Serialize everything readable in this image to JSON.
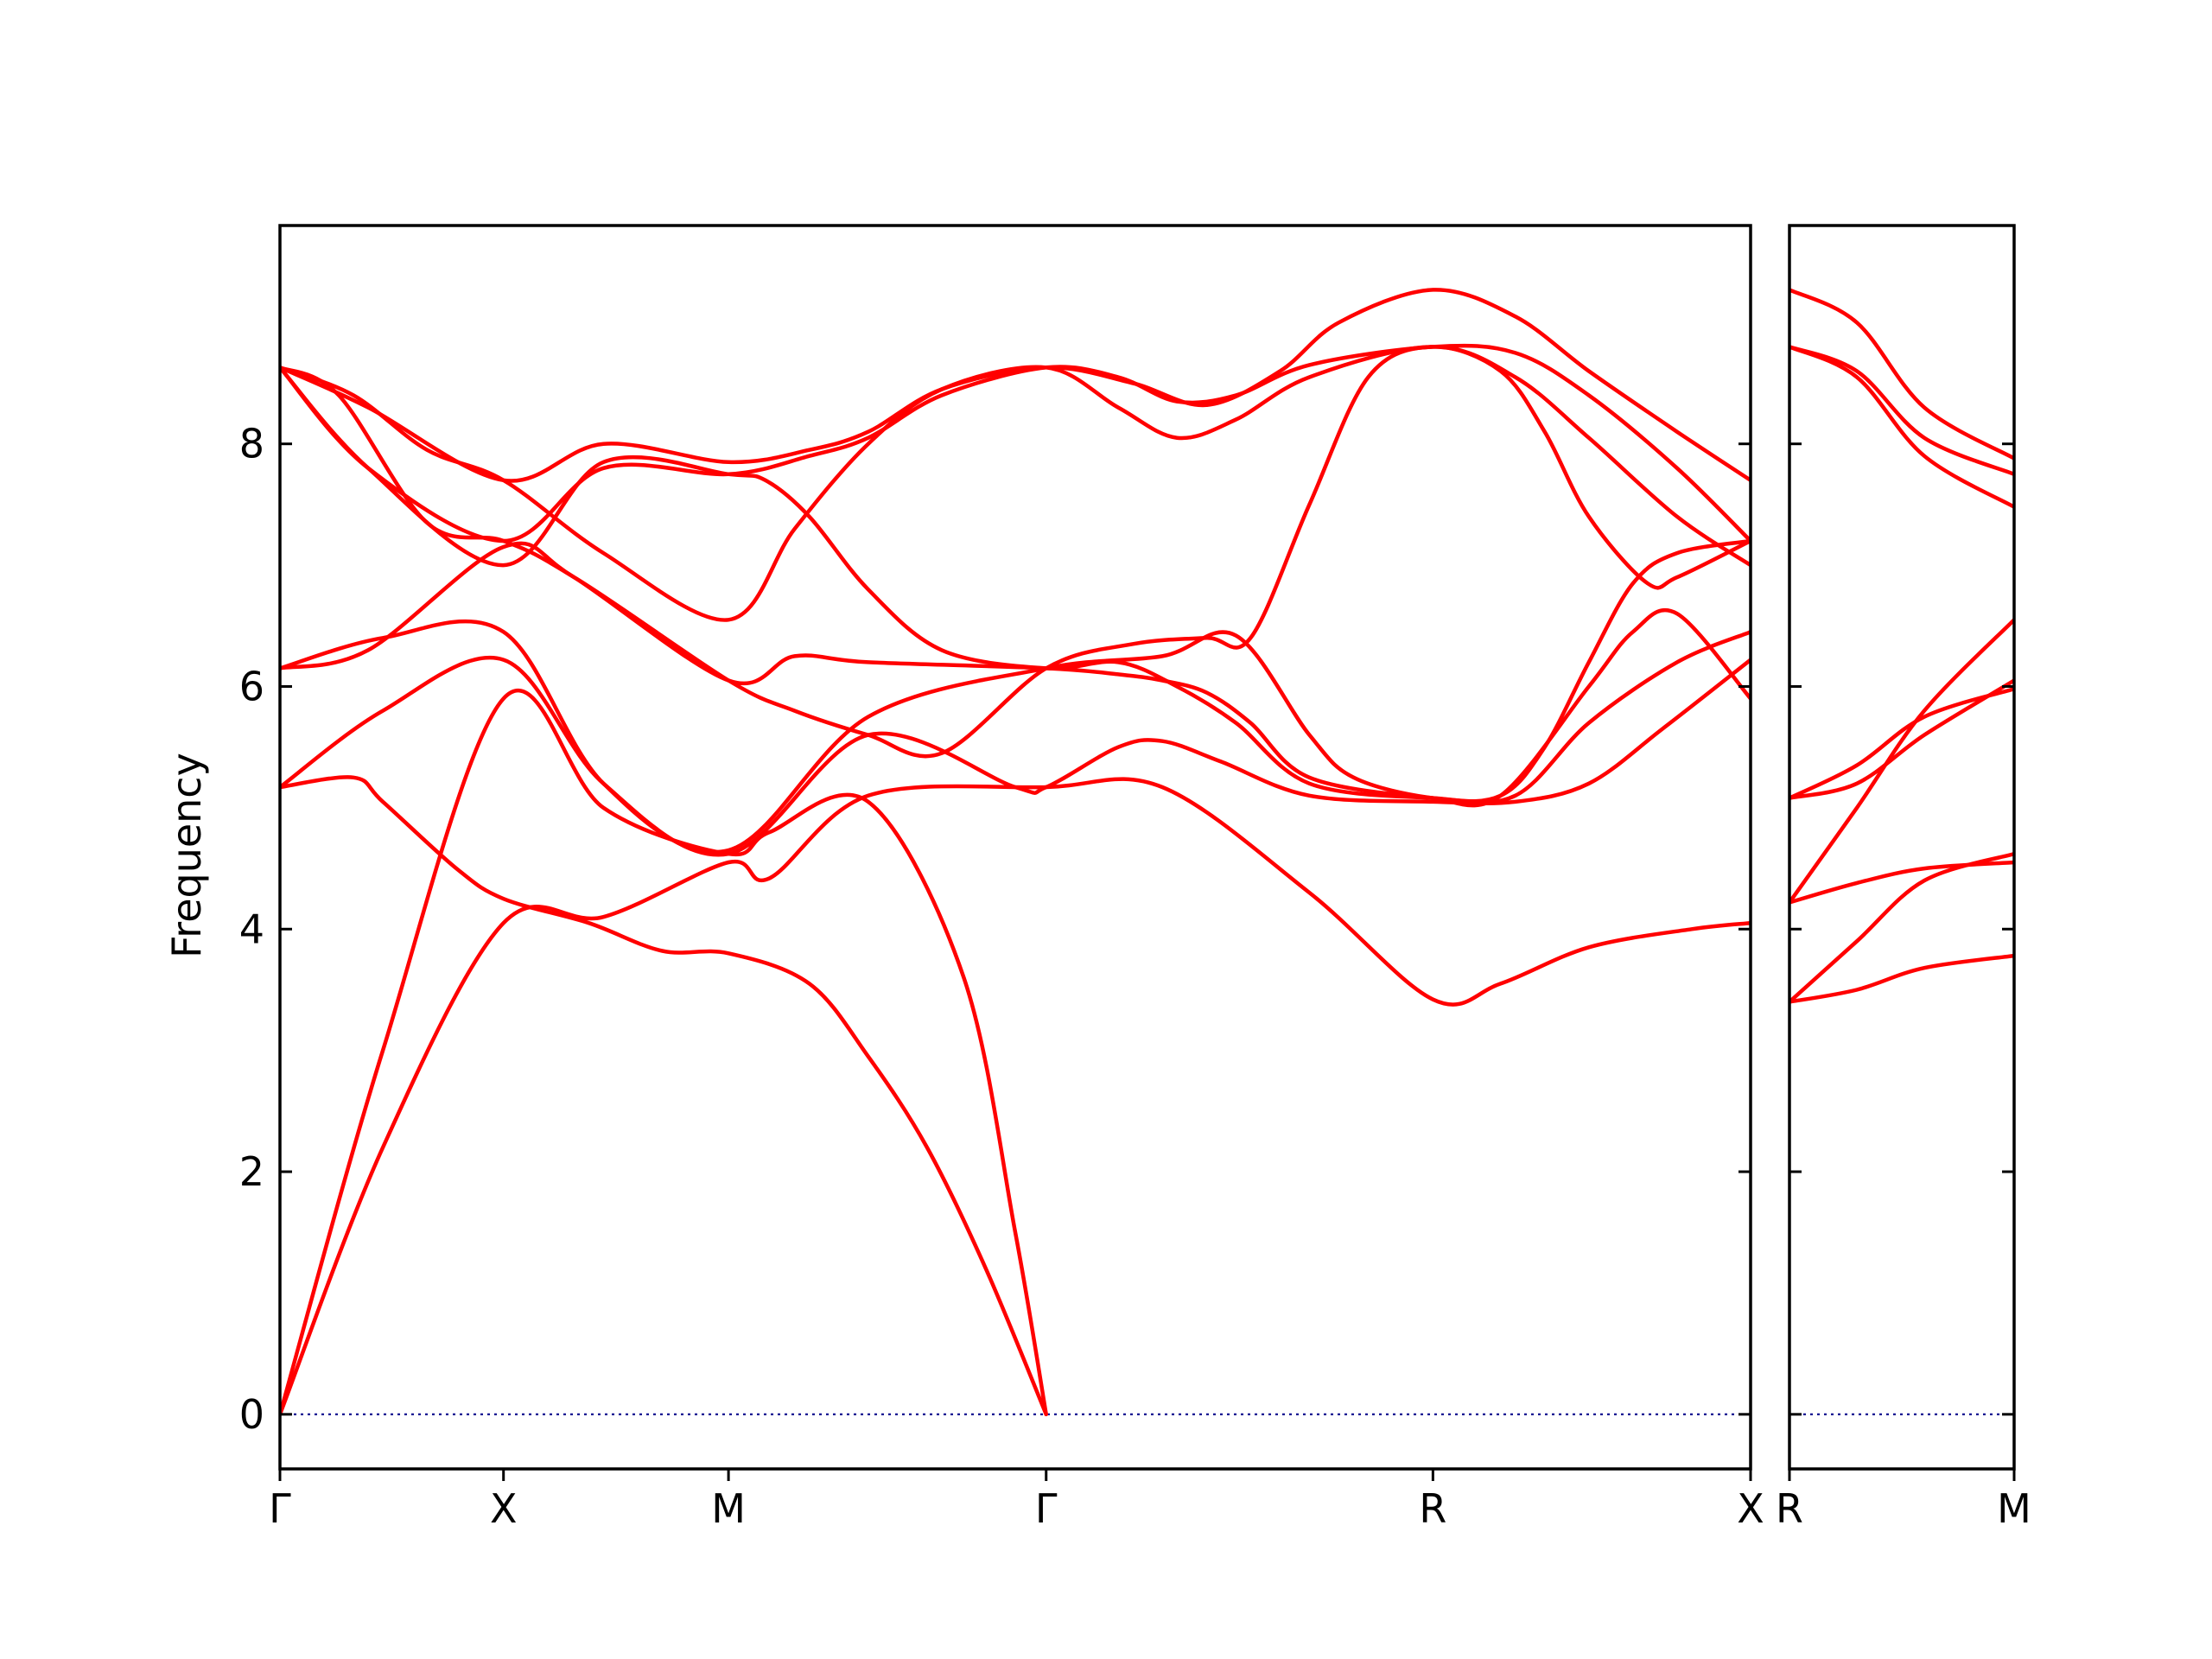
{
  "chart_data": {
    "type": "line",
    "title": "",
    "ylabel": "Frequency",
    "ylim": [
      -0.45,
      9.8
    ],
    "yticks": [
      0,
      2,
      4,
      6,
      8
    ],
    "grid": false,
    "legend": "none",
    "band_color": "#ff0000",
    "zero_line_color": "#00008b",
    "panels": [
      {
        "name": "main",
        "xlim": [
          0,
          1
        ],
        "x_tick_positions": [
          0,
          0.152,
          0.305,
          0.521,
          0.784,
          1.0
        ],
        "x_tick_labels": [
          "Γ",
          "X",
          "M",
          "Γ",
          "R",
          "X"
        ],
        "series": [
          {
            "x": [
              0,
              0.07,
              0.152,
              0.22,
              0.305,
              0.333,
              0.4,
              0.521,
              0.6,
              0.7,
              0.784,
              0.83,
              0.89,
              0.96,
              1.0
            ],
            "y": [
              0,
              2.2,
              4.05,
              4.1,
              4.55,
              4.42,
              5.1,
              5.17,
              5.17,
              4.3,
              3.42,
              3.55,
              3.85,
              4.0,
              4.05
            ]
          },
          {
            "x": [
              0,
              0.07,
              0.152,
              0.22,
              0.305,
              0.333,
              0.4,
              0.465,
              0.5,
              0.521
            ],
            "y": [
              0,
              3.0,
              5.9,
              5.0,
              4.62,
              4.8,
              5.05,
              3.6,
              1.5,
              0
            ]
          },
          {
            "x": [
              0,
              0.05,
              0.07,
              0.12,
              0.152,
              0.21,
              0.26,
              0.305,
              0.36,
              0.4,
              0.44,
              0.48,
              0.521
            ],
            "y": [
              5.17,
              5.25,
              5.05,
              4.5,
              4.25,
              4.05,
              3.82,
              3.8,
              3.55,
              2.95,
              2.2,
              1.2,
              0
            ]
          },
          {
            "x": [
              0,
              0.07,
              0.152,
              0.22,
              0.305,
              0.4,
              0.5,
              0.521,
              0.57,
              0.6,
              0.64,
              0.7,
              0.784,
              0.84,
              0.89,
              0.94,
              1.0
            ],
            "y": [
              5.17,
              5.8,
              6.22,
              5.2,
              4.62,
              5.6,
              5.17,
              5.17,
              5.5,
              5.55,
              5.38,
              5.1,
              5.05,
              5.05,
              5.2,
              5.65,
              6.22
            ]
          },
          {
            "x": [
              0,
              0.07,
              0.152,
              0.22,
              0.305,
              0.4,
              0.521,
              0.6,
              0.65,
              0.7,
              0.73,
              0.784,
              0.83,
              0.89,
              0.92,
              0.95,
              1.0
            ],
            "y": [
              6.15,
              6.4,
              6.45,
              5.2,
              4.65,
              5.75,
              6.15,
              6.25,
              6.42,
              5.6,
              5.25,
              5.08,
              5.1,
              6.0,
              6.45,
              6.6,
              5.9
            ]
          },
          {
            "x": [
              0,
              0.06,
              0.152,
              0.2,
              0.305,
              0.35,
              0.4,
              0.45,
              0.521,
              0.58,
              0.63,
              0.66,
              0.7,
              0.74,
              0.784,
              0.83,
              0.86,
              0.89,
              0.93,
              0.95,
              1.0
            ],
            "y": [
              6.15,
              6.3,
              7.15,
              6.9,
              6.05,
              5.8,
              5.6,
              5.45,
              6.15,
              6.35,
              6.4,
              6.4,
              7.5,
              8.55,
              8.8,
              8.6,
              8.1,
              7.4,
              6.85,
              6.9,
              7.2
            ]
          },
          {
            "x": [
              0,
              0.04,
              0.1,
              0.152,
              0.2,
              0.305,
              0.35,
              0.4,
              0.521,
              0.57,
              0.6,
              0.63,
              0.66,
              0.7,
              0.784,
              0.83,
              0.86,
              0.89,
              0.92,
              0.95,
              1.0
            ],
            "y": [
              8.63,
              8.4,
              7.35,
              7.2,
              6.9,
              6.05,
              6.25,
              6.2,
              6.15,
              6.1,
              6.05,
              5.95,
              5.7,
              5.25,
              5.08,
              5.1,
              5.5,
              6.2,
              6.85,
              7.1,
              7.2
            ]
          },
          {
            "x": [
              0,
              0.05,
              0.1,
              0.152,
              0.22,
              0.305,
              0.35,
              0.4,
              0.45,
              0.521,
              0.57,
              0.61,
              0.65,
              0.7,
              0.784,
              0.84,
              0.89,
              0.95,
              1.0
            ],
            "y": [
              8.63,
              8.4,
              7.95,
              7.7,
              7.1,
              6.55,
              7.3,
              8.0,
              8.45,
              8.63,
              8.3,
              8.05,
              8.2,
              8.55,
              8.8,
              8.55,
              8.05,
              7.4,
              7.0
            ]
          },
          {
            "x": [
              0,
              0.06,
              0.152,
              0.22,
              0.305,
              0.33,
              0.36,
              0.4,
              0.45,
              0.521,
              0.57,
              0.61,
              0.65,
              0.7,
              0.784,
              0.84,
              0.89,
              0.95,
              1.0
            ],
            "y": [
              8.63,
              7.8,
              7.0,
              7.85,
              7.75,
              7.7,
              7.4,
              6.8,
              6.3,
              6.15,
              6.2,
              6.0,
              5.7,
              5.2,
              5.08,
              5.1,
              5.7,
              6.2,
              6.45
            ]
          },
          {
            "x": [
              0,
              0.06,
              0.152,
              0.22,
              0.305,
              0.36,
              0.4,
              0.45,
              0.521,
              0.57,
              0.61,
              0.65,
              0.7,
              0.784,
              0.84,
              0.89,
              0.95,
              1.0
            ],
            "y": [
              8.63,
              7.8,
              7.2,
              7.8,
              7.75,
              7.9,
              8.05,
              8.4,
              8.63,
              8.55,
              8.35,
              8.4,
              8.65,
              8.8,
              8.75,
              8.4,
              7.8,
              7.2
            ]
          },
          {
            "x": [
              0,
              0.06,
              0.152,
              0.22,
              0.305,
              0.36,
              0.4,
              0.45,
              0.521,
              0.58,
              0.63,
              0.68,
              0.72,
              0.784,
              0.84,
              0.89,
              0.95,
              1.0
            ],
            "y": [
              8.63,
              8.3,
              7.7,
              8.0,
              7.85,
              7.95,
              8.1,
              8.45,
              8.63,
              8.5,
              8.32,
              8.6,
              9.0,
              9.27,
              9.05,
              8.6,
              8.1,
              7.7
            ]
          }
        ]
      },
      {
        "name": "side",
        "xlim": [
          0,
          1
        ],
        "x_tick_positions": [
          0,
          1.0
        ],
        "x_tick_labels": [
          "R",
          "M"
        ],
        "series": [
          {
            "x": [
              0,
              0.3,
              0.6,
              1.0
            ],
            "y": [
              3.4,
              3.5,
              3.68,
              3.78
            ]
          },
          {
            "x": [
              0,
              0.3,
              0.6,
              1.0
            ],
            "y": [
              3.4,
              3.9,
              4.4,
              4.62
            ]
          },
          {
            "x": [
              0,
              0.3,
              0.6,
              1.0
            ],
            "y": [
              4.22,
              4.38,
              4.5,
              4.55
            ]
          },
          {
            "x": [
              0,
              0.3,
              0.6,
              1.0
            ],
            "y": [
              4.22,
              5.0,
              5.8,
              6.55
            ]
          },
          {
            "x": [
              0,
              0.3,
              0.6,
              1.0
            ],
            "y": [
              5.08,
              5.2,
              5.6,
              6.05
            ]
          },
          {
            "x": [
              0,
              0.3,
              0.6,
              1.0
            ],
            "y": [
              5.08,
              5.35,
              5.75,
              5.98
            ]
          },
          {
            "x": [
              0,
              0.3,
              0.6,
              1.0
            ],
            "y": [
              8.8,
              8.55,
              7.9,
              7.48
            ]
          },
          {
            "x": [
              0,
              0.3,
              0.6,
              1.0
            ],
            "y": [
              8.8,
              8.6,
              8.05,
              7.75
            ]
          },
          {
            "x": [
              0,
              0.3,
              0.6,
              1.0
            ],
            "y": [
              9.27,
              9.0,
              8.3,
              7.88
            ]
          }
        ]
      }
    ]
  }
}
